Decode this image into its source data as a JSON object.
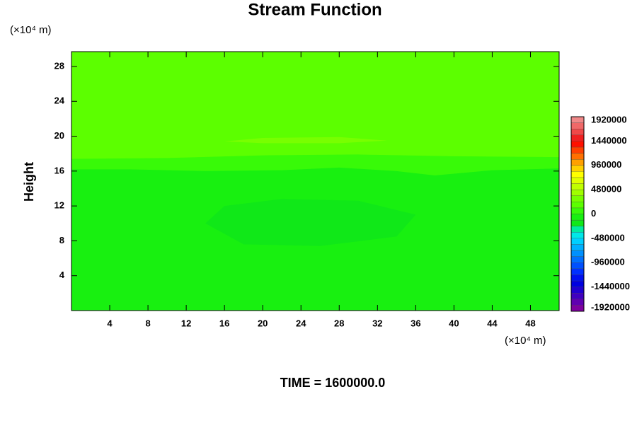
{
  "chart_data": {
    "type": "contour",
    "title": "Stream Function",
    "y_unit": "(×10⁴ m)",
    "x_unit": "(×10⁴ m)",
    "ylabel": "Height",
    "footer": "TIME = 1600000.0",
    "xlim": [
      0,
      51
    ],
    "ylim": [
      0,
      29.7
    ],
    "xticks": [
      4,
      8,
      12,
      16,
      20,
      24,
      28,
      32,
      36,
      40,
      44,
      48
    ],
    "yticks": [
      4,
      8,
      12,
      16,
      20,
      24,
      28
    ],
    "clim": [
      -1920000,
      1920000
    ],
    "cticks": [
      1920000,
      1440000,
      960000,
      480000,
      0,
      -480000,
      -960000,
      -1440000,
      -1920000
    ],
    "colors": [
      "#7f00a0",
      "#6000b0",
      "#4000c0",
      "#2000d0",
      "#0000e0",
      "#0010f0",
      "#0030ff",
      "#0050ff",
      "#0070ff",
      "#0090ff",
      "#00b0ff",
      "#00d0ff",
      "#00e8e8",
      "#00eca0",
      "#10e818",
      "#18f010",
      "#38fa08",
      "#5cff00",
      "#78ff00",
      "#a0ff00",
      "#c0ff00",
      "#e0ff00",
      "#ffff00",
      "#ffd000",
      "#ffa000",
      "#ff7000",
      "#ff4000",
      "#ff1000",
      "#f02020",
      "#f04848",
      "#f06868",
      "#f08888"
    ],
    "regions": [
      {
        "level": 180000,
        "x": [
          0,
          51,
          51,
          0
        ],
        "y": [
          0,
          0,
          29.7,
          29.7
        ]
      },
      {
        "level": 300000,
        "x": [
          16,
          20,
          28,
          33,
          28,
          20
        ],
        "y": [
          19.4,
          19.8,
          19.9,
          19.5,
          19.2,
          19.2
        ]
      },
      {
        "level": 60000,
        "x": [
          0,
          51,
          51,
          40,
          30,
          20,
          10,
          0
        ],
        "y": [
          0,
          0,
          17.6,
          17.7,
          17.9,
          17.8,
          17.5,
          17.4
        ]
      },
      {
        "level": -60000,
        "x": [
          0,
          51,
          51,
          44,
          38,
          34,
          28,
          22,
          14,
          6,
          0
        ],
        "y": [
          0,
          0,
          16.3,
          16.1,
          15.5,
          16.0,
          16.4,
          16.1,
          16.0,
          16.2,
          16.2
        ]
      },
      {
        "level": -180000,
        "x": [
          14,
          18,
          26,
          34,
          36,
          30,
          22,
          16
        ],
        "y": [
          10,
          7.6,
          7.4,
          8.5,
          11,
          12.6,
          12.8,
          12
        ]
      }
    ]
  }
}
